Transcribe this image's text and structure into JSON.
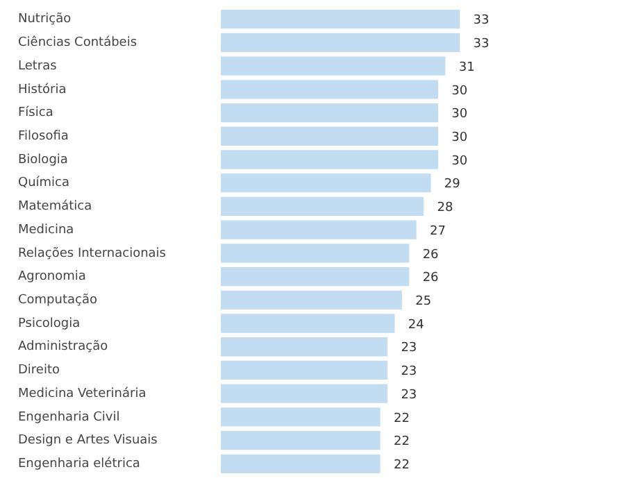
{
  "chart_data": {
    "type": "bar",
    "orientation": "horizontal",
    "color": "#c2dcf2",
    "data_labels": true,
    "categories": [
      "Nutrição",
      "Ciências Contábeis",
      "Letras",
      "História",
      "Física",
      "Filosofia",
      "Biologia",
      "Química",
      "Matemática",
      "Medicina",
      "Relações Internacionais",
      "Agronomia",
      "Computação",
      "Psicologia",
      "Administração",
      "Direito",
      "Medicina Veterinária",
      "Engenharia Civil",
      "Design e Artes Visuais",
      "Engenharia elétrica"
    ],
    "values": [
      33,
      33,
      31,
      30,
      30,
      30,
      30,
      29,
      28,
      27,
      26,
      26,
      25,
      24,
      23,
      23,
      23,
      22,
      22,
      22
    ]
  }
}
